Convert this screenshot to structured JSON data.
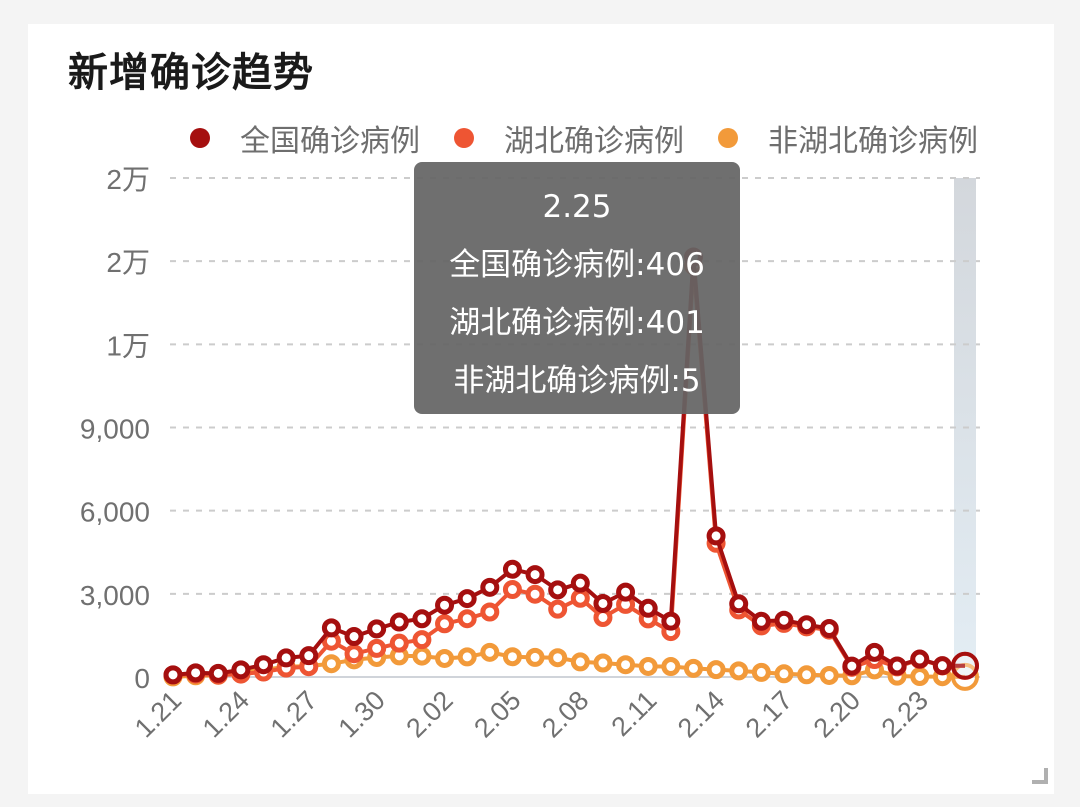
{
  "card": {
    "title": "新增确诊趋势"
  },
  "legend": [
    {
      "label": "全国确诊病例",
      "color": "#a50f0f"
    },
    {
      "label": "湖北确诊病例",
      "color": "#ee5533"
    },
    {
      "label": "非湖北确诊病例",
      "color": "#f29a3a"
    }
  ],
  "y_axis": {
    "ticks": [
      "0",
      "3,000",
      "6,000",
      "9,000",
      "1万",
      "2万",
      "2万"
    ]
  },
  "x_axis": {
    "ticks": [
      "1.21",
      "1.24",
      "1.27",
      "1.30",
      "2.02",
      "2.05",
      "2.08",
      "2.11",
      "2.14",
      "2.17",
      "2.20",
      "2.23"
    ]
  },
  "tooltip": {
    "date": "2.25",
    "line1": "全国确诊病例:406",
    "line2": "湖北确诊病例:401",
    "line3": "非湖北确诊病例:5"
  },
  "chart_data": {
    "type": "line",
    "title": "新增确诊趋势",
    "xlabel": "",
    "ylabel": "",
    "ylim": [
      0,
      18000
    ],
    "grid": true,
    "legend_position": "top",
    "categories": [
      "1.21",
      "1.22",
      "1.23",
      "1.24",
      "1.25",
      "1.26",
      "1.27",
      "1.28",
      "1.29",
      "1.30",
      "1.31",
      "2.01",
      "2.02",
      "2.03",
      "2.04",
      "2.05",
      "2.06",
      "2.07",
      "2.08",
      "2.09",
      "2.10",
      "2.11",
      "2.12",
      "2.13",
      "2.14",
      "2.15",
      "2.16",
      "2.17",
      "2.18",
      "2.19",
      "2.20",
      "2.21",
      "2.22",
      "2.23",
      "2.24",
      "2.25"
    ],
    "series": [
      {
        "name": "全国确诊病例",
        "values": [
          77,
          149,
          131,
          259,
          444,
          688,
          769,
          1771,
          1459,
          1737,
          1982,
          2102,
          2590,
          2829,
          3235,
          3887,
          3694,
          3143,
          3385,
          2652,
          3062,
          2478,
          2015,
          15152,
          5090,
          2641,
          2009,
          2048,
          1886,
          1749,
          394,
          889,
          397,
          648,
          409,
          406
        ]
      },
      {
        "name": "湖北确诊病例",
        "values": [
          72,
          105,
          69,
          105,
          180,
          323,
          371,
          1291,
          840,
          1032,
          1220,
          1347,
          1921,
          2103,
          2345,
          3156,
          2987,
          2447,
          2841,
          2147,
          2618,
          2097,
          1638,
          14840,
          4823,
          2420,
          1843,
          1933,
          1807,
          1693,
          349,
          631,
          366,
          630,
          398,
          401
        ]
      },
      {
        "name": "非湖北确诊病例",
        "values": [
          5,
          44,
          62,
          154,
          264,
          365,
          398,
          480,
          619,
          705,
          762,
          755,
          669,
          726,
          890,
          731,
          707,
          696,
          544,
          505,
          444,
          381,
          377,
          312,
          267,
          221,
          166,
          115,
          79,
          56,
          45,
          258,
          31,
          18,
          11,
          5
        ]
      }
    ]
  }
}
